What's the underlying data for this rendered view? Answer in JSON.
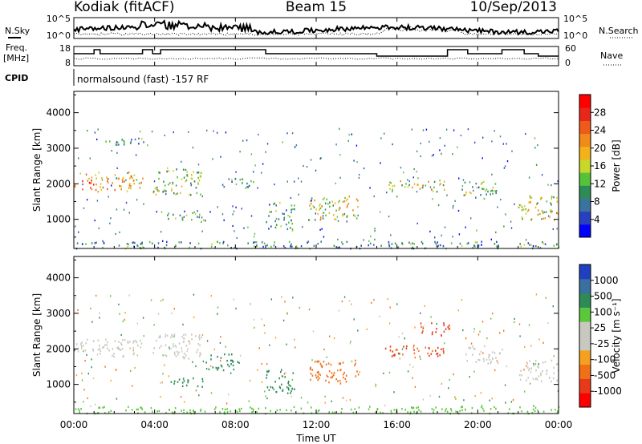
{
  "header": {
    "station": "Kodiak (fitACF)",
    "beam": "Beam 15",
    "date": "10/Sep/2013"
  },
  "strip_panels": {
    "nsky_label": "N.Sky",
    "nsearch_label": "N.Search",
    "freq_label_1": "Freq.",
    "freq_label_2": "[MHz]",
    "nave_label": "Nave",
    "cpid_label": "CPID",
    "noise_left_ticks": [
      "10^5",
      "10^0"
    ],
    "noise_right_ticks": [
      "10^5",
      "10^0"
    ],
    "freq_ticks": [
      "18",
      "8"
    ],
    "nave_ticks": [
      "60",
      "0"
    ],
    "cpid_text": "normalsound (fast) -157 RF"
  },
  "chart_data": [
    {
      "type": "heatmap",
      "panel": "power",
      "ylabel": "Slant Range [km]",
      "x_ticks": [
        "00:00",
        "04:00",
        "08:00",
        "12:00",
        "16:00",
        "20:00",
        "00:00"
      ],
      "y_ticks": [
        1000,
        2000,
        3000,
        4000
      ],
      "ylim": [
        180,
        4600
      ],
      "xlim_hours": [
        0,
        24
      ],
      "colorbar": {
        "label": "Power [dB]",
        "ticks": [
          "4",
          "8",
          "12",
          "16",
          "20",
          "24",
          "28"
        ],
        "colors": [
          "#0000ff",
          "#2a3fbf",
          "#3a72a0",
          "#2e8b57",
          "#56c23a",
          "#c9d62a",
          "#f2b21b",
          "#f08a1a",
          "#ef5a1a",
          "#e8261a",
          "#ff0000"
        ]
      },
      "scatter_regions": [
        {
          "t": [
            0.0,
            3.4
          ],
          "r": [
            1800,
            2350
          ],
          "value": 20
        },
        {
          "t": [
            3.9,
            6.3
          ],
          "r": [
            1700,
            2500
          ],
          "value": 12
        },
        {
          "t": [
            1.5,
            3.5
          ],
          "r": [
            3100,
            3300
          ],
          "value": 8
        },
        {
          "t": [
            4.6,
            6.6
          ],
          "r": [
            950,
            1200
          ],
          "value": 12
        },
        {
          "t": [
            7.3,
            8.9
          ],
          "r": [
            1900,
            2200
          ],
          "value": 8
        },
        {
          "t": [
            9.5,
            10.9
          ],
          "r": [
            700,
            1500
          ],
          "value": 8
        },
        {
          "t": [
            11.6,
            14.2
          ],
          "r": [
            1000,
            1700
          ],
          "value": 16
        },
        {
          "t": [
            15.4,
            18.4
          ],
          "r": [
            1800,
            2100
          ],
          "value": 16
        },
        {
          "t": [
            19.2,
            21.0
          ],
          "r": [
            1600,
            2100
          ],
          "value": 12
        },
        {
          "t": [
            22.0,
            24.0
          ],
          "r": [
            1000,
            1700
          ],
          "value": 16
        },
        {
          "t": [
            0.0,
            24.0
          ],
          "r": [
            200,
            400
          ],
          "value": 8
        }
      ]
    },
    {
      "type": "heatmap",
      "panel": "velocity",
      "ylabel": "Slant Range [km]",
      "xlabel": "Time UT",
      "x_ticks": [
        "00:00",
        "04:00",
        "08:00",
        "12:00",
        "16:00",
        "20:00",
        "00:00"
      ],
      "y_ticks": [
        1000,
        2000,
        3000,
        4000
      ],
      "ylim": [
        180,
        4600
      ],
      "xlim_hours": [
        0,
        24
      ],
      "colorbar": {
        "label": "Velocity [m s⁻¹]",
        "ticks": [
          "1000",
          "500",
          "100",
          "25",
          "-25",
          "-100",
          "-500",
          "-1000"
        ],
        "colors": [
          "#2040c0",
          "#3a6fa0",
          "#2e8b57",
          "#5ac83a",
          "#c8c8c0",
          "#c8c8c0",
          "#f5a020",
          "#f07018",
          "#e83a18",
          "#ff0000"
        ]
      },
      "scatter_regions": [
        {
          "t": [
            0.0,
            3.4
          ],
          "r": [
            1800,
            2300
          ],
          "value": 0
        },
        {
          "t": [
            3.9,
            6.3
          ],
          "r": [
            1750,
            2450
          ],
          "value": 0
        },
        {
          "t": [
            4.6,
            6.6
          ],
          "r": [
            950,
            1200
          ],
          "value": 150
        },
        {
          "t": [
            6.5,
            8.2
          ],
          "r": [
            1400,
            1900
          ],
          "value": 200
        },
        {
          "t": [
            9.5,
            10.9
          ],
          "r": [
            750,
            1450
          ],
          "value": 200
        },
        {
          "t": [
            11.6,
            14.2
          ],
          "r": [
            1050,
            1700
          ],
          "value": -300
        },
        {
          "t": [
            15.4,
            18.4
          ],
          "r": [
            1800,
            2150
          ],
          "value": -600
        },
        {
          "t": [
            17.0,
            18.6
          ],
          "r": [
            2400,
            2750
          ],
          "value": -700
        },
        {
          "t": [
            19.3,
            21.2
          ],
          "r": [
            1600,
            2100
          ],
          "value": 0
        },
        {
          "t": [
            22.0,
            24.0
          ],
          "r": [
            1100,
            1700
          ],
          "value": 0
        },
        {
          "t": [
            0.0,
            24.0
          ],
          "r": [
            200,
            400
          ],
          "value": 60
        }
      ]
    }
  ]
}
